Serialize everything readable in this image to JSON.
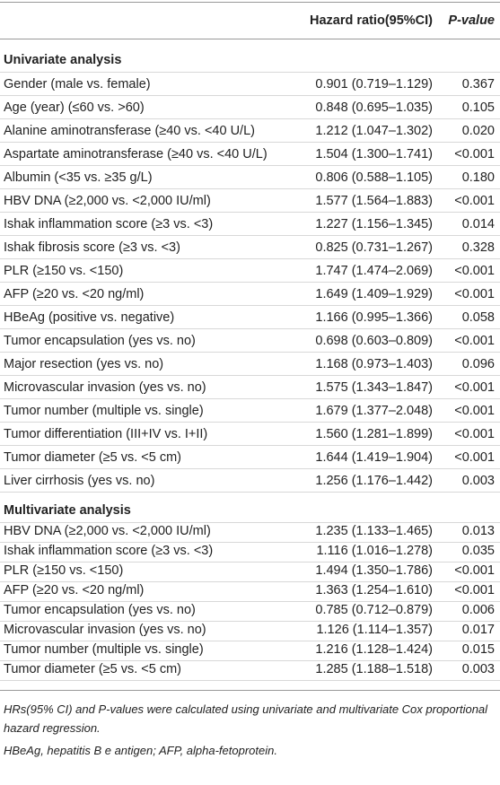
{
  "table": {
    "header": [
      "",
      "Hazard ratio(95%CI)",
      "P-value"
    ],
    "sections": [
      {
        "title": "Univariate analysis",
        "rows": [
          [
            "Gender (male vs. female)",
            "0.901 (0.719–1.129)",
            "0.367"
          ],
          [
            "Age (year) (≤60 vs. >60)",
            "0.848 (0.695–1.035)",
            "0.105"
          ],
          [
            "Alanine aminotransferase (≥40 vs. <40 U/L)",
            "1.212 (1.047–1.302)",
            "0.020"
          ],
          [
            "Aspartate aminotransferase (≥40 vs. <40 U/L)",
            "1.504 (1.300–1.741)",
            "<0.001"
          ],
          [
            "Albumin (<35 vs. ≥35 g/L)",
            "0.806 (0.588–1.105)",
            "0.180"
          ],
          [
            "HBV DNA (≥2,000 vs. <2,000 IU/ml)",
            "1.577 (1.564–1.883)",
            "<0.001"
          ],
          [
            "Ishak inflammation score (≥3 vs. <3)",
            "1.227 (1.156–1.345)",
            "0.014"
          ],
          [
            "Ishak fibrosis score (≥3 vs. <3)",
            "0.825 (0.731–1.267)",
            "0.328"
          ],
          [
            "PLR (≥150 vs. <150)",
            "1.747 (1.474–2.069)",
            "<0.001"
          ],
          [
            "AFP (≥20 vs. <20 ng/ml)",
            "1.649 (1.409–1.929)",
            "<0.001"
          ],
          [
            "HBeAg (positive vs. negative)",
            "1.166 (0.995–1.366)",
            "0.058"
          ],
          [
            "Tumor encapsulation (yes vs. no)",
            "0.698 (0.603–0.809)",
            "<0.001"
          ],
          [
            "Major resection (yes vs. no)",
            "1.168 (0.973–1.403)",
            "0.096"
          ],
          [
            "Microvascular invasion (yes vs. no)",
            "1.575 (1.343–1.847)",
            "<0.001"
          ],
          [
            "Tumor number (multiple vs. single)",
            "1.679 (1.377–2.048)",
            "<0.001"
          ],
          [
            "Tumor differentiation (III+IV vs. I+II)",
            "1.560 (1.281–1.899)",
            "<0.001"
          ],
          [
            "Tumor diameter (≥5 vs. <5 cm)",
            "1.644 (1.419–1.904)",
            "<0.001"
          ],
          [
            "Liver cirrhosis (yes vs. no)",
            "1.256 (1.176–1.442)",
            "0.003"
          ]
        ]
      },
      {
        "title": "Multivariate analysis",
        "rows": [
          [
            "HBV DNA (≥2,000 vs. <2,000 IU/ml)",
            "1.235 (1.133–1.465)",
            "0.013"
          ],
          [
            "Ishak inflammation score (≥3 vs. <3)",
            "1.116 (1.016–1.278)",
            "0.035"
          ],
          [
            "PLR (≥150 vs. <150)",
            "1.494 (1.350–1.786)",
            "<0.001"
          ],
          [
            "AFP (≥20 vs. <20 ng/ml)",
            "1.363 (1.254–1.610)",
            "<0.001"
          ],
          [
            "Tumor encapsulation (yes vs. no)",
            "0.785 (0.712–0.879)",
            "0.006"
          ],
          [
            "Microvascular invasion (yes vs. no)",
            "1.126 (1.114–1.357)",
            "0.017"
          ],
          [
            "Tumor number (multiple vs. single)",
            "1.216 (1.128–1.424)",
            "0.015"
          ],
          [
            "Tumor diameter (≥5 vs. <5 cm)",
            "1.285 (1.188–1.518)",
            "0.003"
          ]
        ]
      }
    ]
  },
  "footnotes": [
    "HRs(95% CI) and P-values were calculated using univariate and multivariate Cox proportional hazard regression.",
    "HBeAg, hepatitis B e antigen; AFP, alpha-fetoprotein."
  ]
}
